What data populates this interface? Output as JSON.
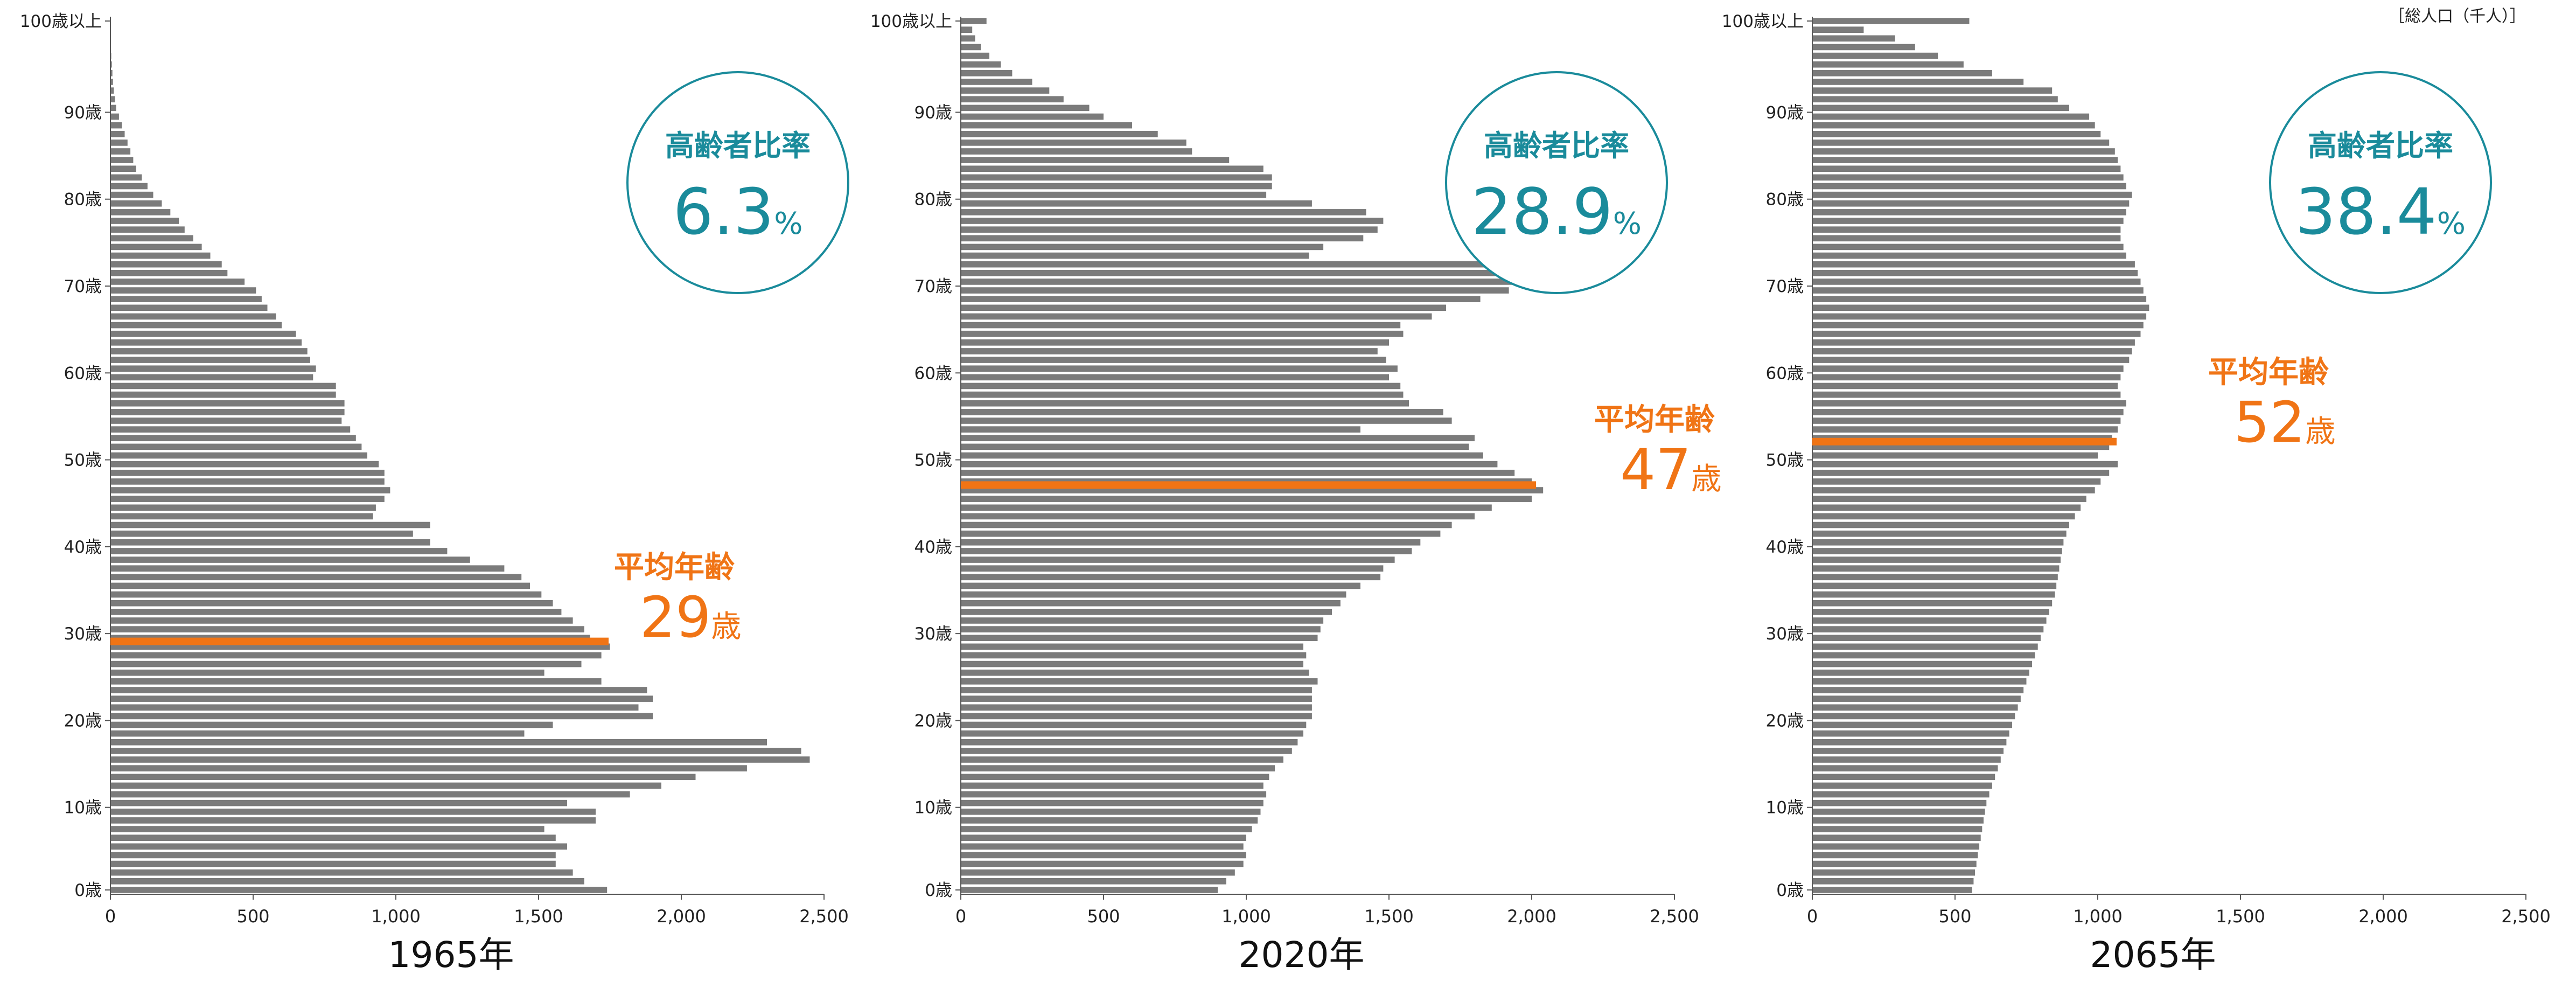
{
  "unit_note": "［総人口（千人）］",
  "colors": {
    "bar": "#7b7b7b",
    "axis": "#555555",
    "teal": "#1a8b9b",
    "orange": "#f07415",
    "text": "#222222"
  },
  "chart_data": [
    {
      "type": "bar",
      "orientation": "horizontal",
      "title": "1965年",
      "ylim": [
        0,
        100
      ],
      "xlim": [
        0,
        2500
      ],
      "x_ticks": [
        "0",
        "500",
        "1,000",
        "1,500",
        "2,000",
        "2,500"
      ],
      "y_ticks": [
        "0歳",
        "10歳",
        "20歳",
        "30歳",
        "40歳",
        "50歳",
        "60歳",
        "70歳",
        "80歳",
        "90歳",
        "100歳以上"
      ],
      "ages": [
        0,
        1,
        2,
        3,
        4,
        5,
        6,
        7,
        8,
        9,
        10,
        11,
        12,
        13,
        14,
        15,
        16,
        17,
        18,
        19,
        20,
        21,
        22,
        23,
        24,
        25,
        26,
        27,
        28,
        29,
        30,
        31,
        32,
        33,
        34,
        35,
        36,
        37,
        38,
        39,
        40,
        41,
        42,
        43,
        44,
        45,
        46,
        47,
        48,
        49,
        50,
        51,
        52,
        53,
        54,
        55,
        56,
        57,
        58,
        59,
        60,
        61,
        62,
        63,
        64,
        65,
        66,
        67,
        68,
        69,
        70,
        71,
        72,
        73,
        74,
        75,
        76,
        77,
        78,
        79,
        80,
        81,
        82,
        83,
        84,
        85,
        86,
        87,
        88,
        89,
        90,
        91,
        92,
        93,
        94,
        95,
        96,
        97,
        98,
        99,
        100
      ],
      "values": [
        1740,
        1660,
        1620,
        1560,
        1560,
        1600,
        1560,
        1520,
        1700,
        1700,
        1600,
        1820,
        1930,
        2050,
        2230,
        2450,
        2420,
        2300,
        1450,
        1550,
        1900,
        1850,
        1900,
        1880,
        1720,
        1520,
        1650,
        1720,
        1750,
        1680,
        1660,
        1620,
        1580,
        1550,
        1510,
        1470,
        1440,
        1380,
        1260,
        1180,
        1120,
        1060,
        1120,
        920,
        930,
        960,
        980,
        960,
        960,
        940,
        900,
        880,
        860,
        840,
        810,
        820,
        820,
        790,
        790,
        710,
        720,
        700,
        690,
        670,
        650,
        600,
        580,
        550,
        530,
        510,
        470,
        410,
        390,
        350,
        320,
        290,
        260,
        240,
        210,
        180,
        150,
        130,
        110,
        90,
        80,
        70,
        60,
        50,
        40,
        30,
        20,
        16,
        12,
        9,
        7,
        5,
        3,
        2,
        1,
        1,
        1
      ],
      "ratio_label": "高齢者比率",
      "ratio_value": "6.3",
      "ratio_unit": "%",
      "mean_label": "平均年齢",
      "mean_value": "29",
      "mean_unit": "歳",
      "mean_age": 29
    },
    {
      "type": "bar",
      "orientation": "horizontal",
      "title": "2020年",
      "ylim": [
        0,
        100
      ],
      "xlim": [
        0,
        2500
      ],
      "x_ticks": [
        "0",
        "500",
        "1,000",
        "1,500",
        "2,000",
        "2,500"
      ],
      "y_ticks": [
        "0歳",
        "10歳",
        "20歳",
        "30歳",
        "40歳",
        "50歳",
        "60歳",
        "70歳",
        "80歳",
        "90歳",
        "100歳以上"
      ],
      "ages": [
        0,
        1,
        2,
        3,
        4,
        5,
        6,
        7,
        8,
        9,
        10,
        11,
        12,
        13,
        14,
        15,
        16,
        17,
        18,
        19,
        20,
        21,
        22,
        23,
        24,
        25,
        26,
        27,
        28,
        29,
        30,
        31,
        32,
        33,
        34,
        35,
        36,
        37,
        38,
        39,
        40,
        41,
        42,
        43,
        44,
        45,
        46,
        47,
        48,
        49,
        50,
        51,
        52,
        53,
        54,
        55,
        56,
        57,
        58,
        59,
        60,
        61,
        62,
        63,
        64,
        65,
        66,
        67,
        68,
        69,
        70,
        71,
        72,
        73,
        74,
        75,
        76,
        77,
        78,
        79,
        80,
        81,
        82,
        83,
        84,
        85,
        86,
        87,
        88,
        89,
        90,
        91,
        92,
        93,
        94,
        95,
        96,
        97,
        98,
        99,
        100
      ],
      "values": [
        900,
        930,
        960,
        990,
        1000,
        990,
        1000,
        1020,
        1040,
        1050,
        1060,
        1070,
        1060,
        1080,
        1100,
        1130,
        1160,
        1180,
        1200,
        1210,
        1230,
        1230,
        1230,
        1230,
        1250,
        1220,
        1200,
        1210,
        1200,
        1250,
        1260,
        1270,
        1300,
        1330,
        1350,
        1400,
        1470,
        1480,
        1520,
        1580,
        1610,
        1680,
        1720,
        1800,
        1860,
        2000,
        2040,
        2000,
        1940,
        1880,
        1830,
        1780,
        1800,
        1400,
        1720,
        1690,
        1570,
        1550,
        1540,
        1500,
        1530,
        1490,
        1460,
        1500,
        1550,
        1540,
        1650,
        1700,
        1820,
        1920,
        2080,
        2040,
        1940,
        1220,
        1270,
        1410,
        1460,
        1480,
        1420,
        1230,
        1070,
        1090,
        1090,
        1060,
        940,
        810,
        790,
        690,
        600,
        500,
        450,
        360,
        310,
        250,
        180,
        140,
        100,
        70,
        50,
        40,
        90
      ],
      "ratio_label": "高齢者比率",
      "ratio_value": "28.9",
      "ratio_unit": "%",
      "mean_label": "平均年齢",
      "mean_value": "47",
      "mean_unit": "歳",
      "mean_age": 47
    },
    {
      "type": "bar",
      "orientation": "horizontal",
      "title": "2065年",
      "ylim": [
        0,
        100
      ],
      "xlim": [
        0,
        2500
      ],
      "x_ticks": [
        "0",
        "500",
        "1,000",
        "1,500",
        "2,000",
        "2,500"
      ],
      "y_ticks": [
        "0歳",
        "10歳",
        "20歳",
        "30歳",
        "40歳",
        "50歳",
        "60歳",
        "70歳",
        "80歳",
        "90歳",
        "100歳以上"
      ],
      "ages": [
        0,
        1,
        2,
        3,
        4,
        5,
        6,
        7,
        8,
        9,
        10,
        11,
        12,
        13,
        14,
        15,
        16,
        17,
        18,
        19,
        20,
        21,
        22,
        23,
        24,
        25,
        26,
        27,
        28,
        29,
        30,
        31,
        32,
        33,
        34,
        35,
        36,
        37,
        38,
        39,
        40,
        41,
        42,
        43,
        44,
        45,
        46,
        47,
        48,
        49,
        50,
        51,
        52,
        53,
        54,
        55,
        56,
        57,
        58,
        59,
        60,
        61,
        62,
        63,
        64,
        65,
        66,
        67,
        68,
        69,
        70,
        71,
        72,
        73,
        74,
        75,
        76,
        77,
        78,
        79,
        80,
        81,
        82,
        83,
        84,
        85,
        86,
        87,
        88,
        89,
        90,
        91,
        92,
        93,
        94,
        95,
        96,
        97,
        98,
        99,
        100
      ],
      "values": [
        560,
        565,
        570,
        575,
        580,
        585,
        590,
        595,
        600,
        605,
        610,
        620,
        630,
        640,
        650,
        660,
        670,
        680,
        690,
        700,
        710,
        720,
        730,
        740,
        750,
        760,
        770,
        780,
        790,
        800,
        810,
        820,
        830,
        840,
        850,
        855,
        860,
        865,
        870,
        875,
        880,
        890,
        900,
        920,
        940,
        960,
        990,
        1010,
        1040,
        1070,
        1000,
        1040,
        1050,
        1070,
        1080,
        1090,
        1100,
        1080,
        1070,
        1080,
        1090,
        1110,
        1120,
        1130,
        1150,
        1160,
        1170,
        1180,
        1170,
        1160,
        1150,
        1140,
        1130,
        1100,
        1090,
        1080,
        1080,
        1090,
        1100,
        1110,
        1120,
        1100,
        1090,
        1080,
        1070,
        1060,
        1040,
        1010,
        990,
        970,
        900,
        860,
        840,
        740,
        630,
        530,
        440,
        360,
        290,
        180,
        550
      ],
      "ratio_label": "高齢者比率",
      "ratio_value": "38.4",
      "ratio_unit": "%",
      "mean_label": "平均年齢",
      "mean_value": "52",
      "mean_unit": "歳",
      "mean_age": 52
    }
  ]
}
